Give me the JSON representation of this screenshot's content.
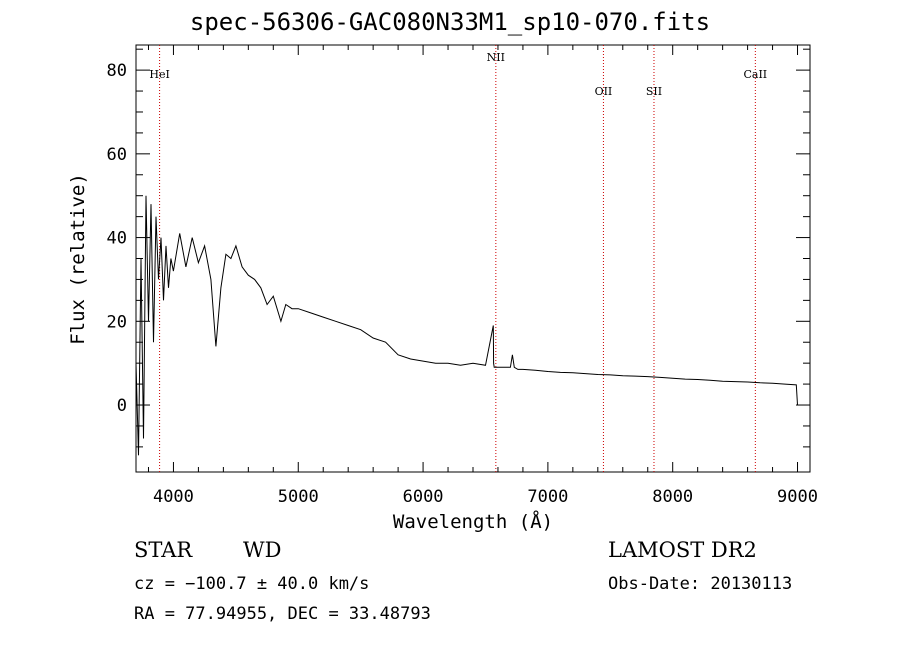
{
  "title": "spec-56306-GAC080N33M1_sp10-070.fits",
  "footer": {
    "class": "STAR",
    "subclass": "WD",
    "survey": "LAMOST DR2",
    "cz": "cz = −100.7 ± 40.0 km/s",
    "obs_date": "Obs-Date: 20130113",
    "radec": "RA =  77.94955, DEC =  33.48793"
  },
  "chart_data": {
    "type": "line",
    "title": "spec-56306-GAC080N33M1_sp10-070.fits",
    "xlabel": "Wavelength (Å)",
    "ylabel": "Flux (relative)",
    "xlim": [
      3700,
      9100
    ],
    "ylim": [
      -16,
      86
    ],
    "xticks": [
      4000,
      5000,
      6000,
      7000,
      8000,
      9000
    ],
    "yticks": [
      0,
      20,
      40,
      60,
      80
    ],
    "grid": false,
    "lines": [
      {
        "label": "HeI",
        "x": 3889
      },
      {
        "label": "NII",
        "x": 6583
      },
      {
        "label": "OII",
        "x": 7445
      },
      {
        "label": "SII",
        "x": 7850
      },
      {
        "label": "CaII",
        "x": 8662
      }
    ],
    "series": [
      {
        "name": "",
        "x": [
          3700,
          3720,
          3740,
          3760,
          3780,
          3800,
          3820,
          3840,
          3860,
          3880,
          3900,
          3920,
          3940,
          3960,
          3980,
          4000,
          4050,
          4100,
          4150,
          4200,
          4250,
          4300,
          4340,
          4380,
          4420,
          4460,
          4500,
          4550,
          4600,
          4650,
          4700,
          4750,
          4800,
          4861,
          4900,
          4950,
          5000,
          5100,
          5200,
          5300,
          5400,
          5500,
          5600,
          5700,
          5800,
          5900,
          6000,
          6100,
          6200,
          6300,
          6400,
          6500,
          6563,
          6565,
          6570,
          6583,
          6600,
          6650,
          6700,
          6716,
          6731,
          6760,
          6800,
          6900,
          7000,
          7100,
          7200,
          7300,
          7400,
          7500,
          7600,
          7700,
          7800,
          7900,
          8000,
          8100,
          8200,
          8300,
          8400,
          8500,
          8600,
          8700,
          8800,
          8900,
          8990,
          9000
        ],
        "y": [
          10,
          -12,
          35,
          -8,
          50,
          20,
          48,
          15,
          45,
          30,
          40,
          25,
          38,
          28,
          35,
          32,
          41,
          33,
          40,
          34,
          38,
          30,
          14,
          28,
          36,
          35,
          38,
          33,
          31,
          30,
          28,
          24,
          26,
          20,
          24,
          23,
          23,
          22,
          21,
          20,
          19,
          18,
          16,
          15,
          12,
          11,
          10.5,
          10,
          10,
          9.5,
          10,
          9.5,
          19,
          10,
          9,
          9,
          9,
          9,
          9,
          12,
          9,
          8.5,
          8.5,
          8.3,
          8,
          7.8,
          7.7,
          7.5,
          7.3,
          7.2,
          7,
          6.9,
          6.8,
          6.6,
          6.4,
          6.2,
          6.1,
          5.9,
          5.7,
          5.6,
          5.5,
          5.3,
          5.2,
          5,
          4.8,
          0
        ]
      }
    ]
  }
}
